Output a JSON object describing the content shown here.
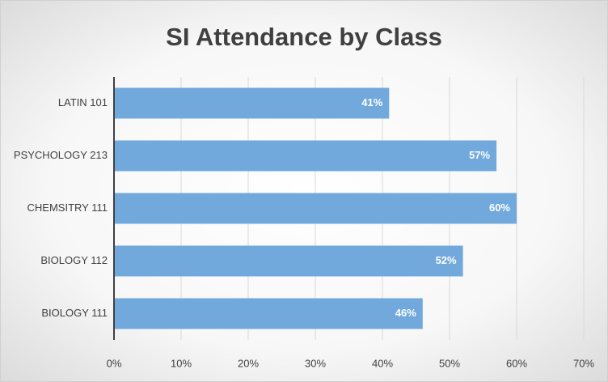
{
  "chart_data": {
    "type": "bar",
    "orientation": "horizontal",
    "title": "SI Attendance by Class",
    "categories": [
      "LATIN 101",
      "PSYCHOLOGY 213",
      "CHEMSITRY 111",
      "BIOLOGY 112",
      "BIOLOGY 111"
    ],
    "values": [
      41,
      57,
      60,
      52,
      46
    ],
    "value_labels": [
      "41%",
      "57%",
      "60%",
      "52%",
      "46%"
    ],
    "color": "#72a9dc",
    "xlim": [
      0,
      70
    ],
    "xticks": [
      {
        "value": 0,
        "label": "0%"
      },
      {
        "value": 10,
        "label": "10%"
      },
      {
        "value": 20,
        "label": "20%"
      },
      {
        "value": 30,
        "label": "30%"
      },
      {
        "value": 40,
        "label": "40%"
      },
      {
        "value": 50,
        "label": "50%"
      },
      {
        "value": 60,
        "label": "60%"
      },
      {
        "value": 70,
        "label": "70%"
      }
    ],
    "grid": true
  }
}
